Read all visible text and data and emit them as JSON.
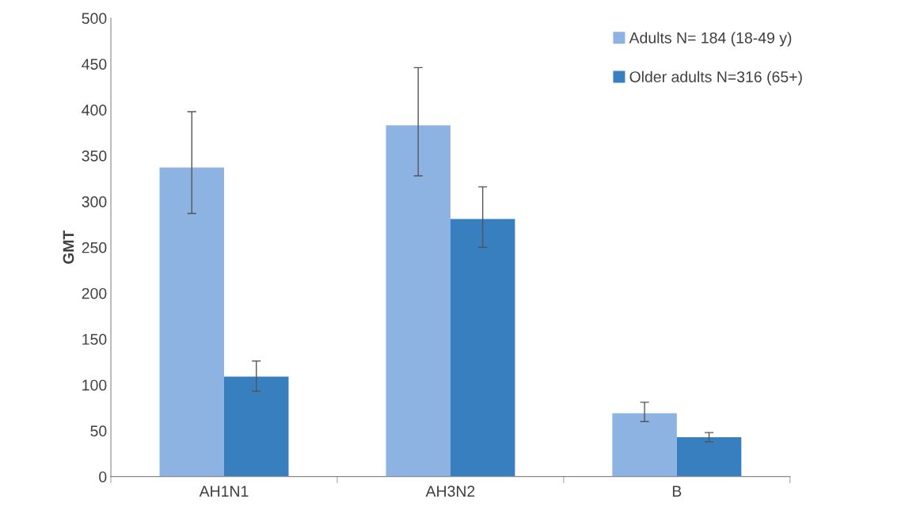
{
  "chart_data": {
    "type": "bar",
    "ylabel": "GMT",
    "categories": [
      "AH1N1",
      "AH3N2",
      "B"
    ],
    "series": [
      {
        "name": "Adults N= 184 (18-49 y)",
        "color": "#8db3e2",
        "values": [
          337,
          383,
          69
        ],
        "errors": [
          [
            287,
            398
          ],
          [
            328,
            446
          ],
          [
            60,
            81
          ]
        ]
      },
      {
        "name": "Older adults N=316 (65+)",
        "color": "#377fbf",
        "values": [
          109,
          281,
          43
        ],
        "errors": [
          [
            93,
            126
          ],
          [
            250,
            316
          ],
          [
            38,
            48
          ]
        ]
      }
    ],
    "ylim": [
      0,
      500
    ],
    "yticks": [
      0,
      50,
      100,
      150,
      200,
      250,
      300,
      350,
      400,
      450,
      500
    ],
    "grid": false,
    "legend": "top right"
  }
}
